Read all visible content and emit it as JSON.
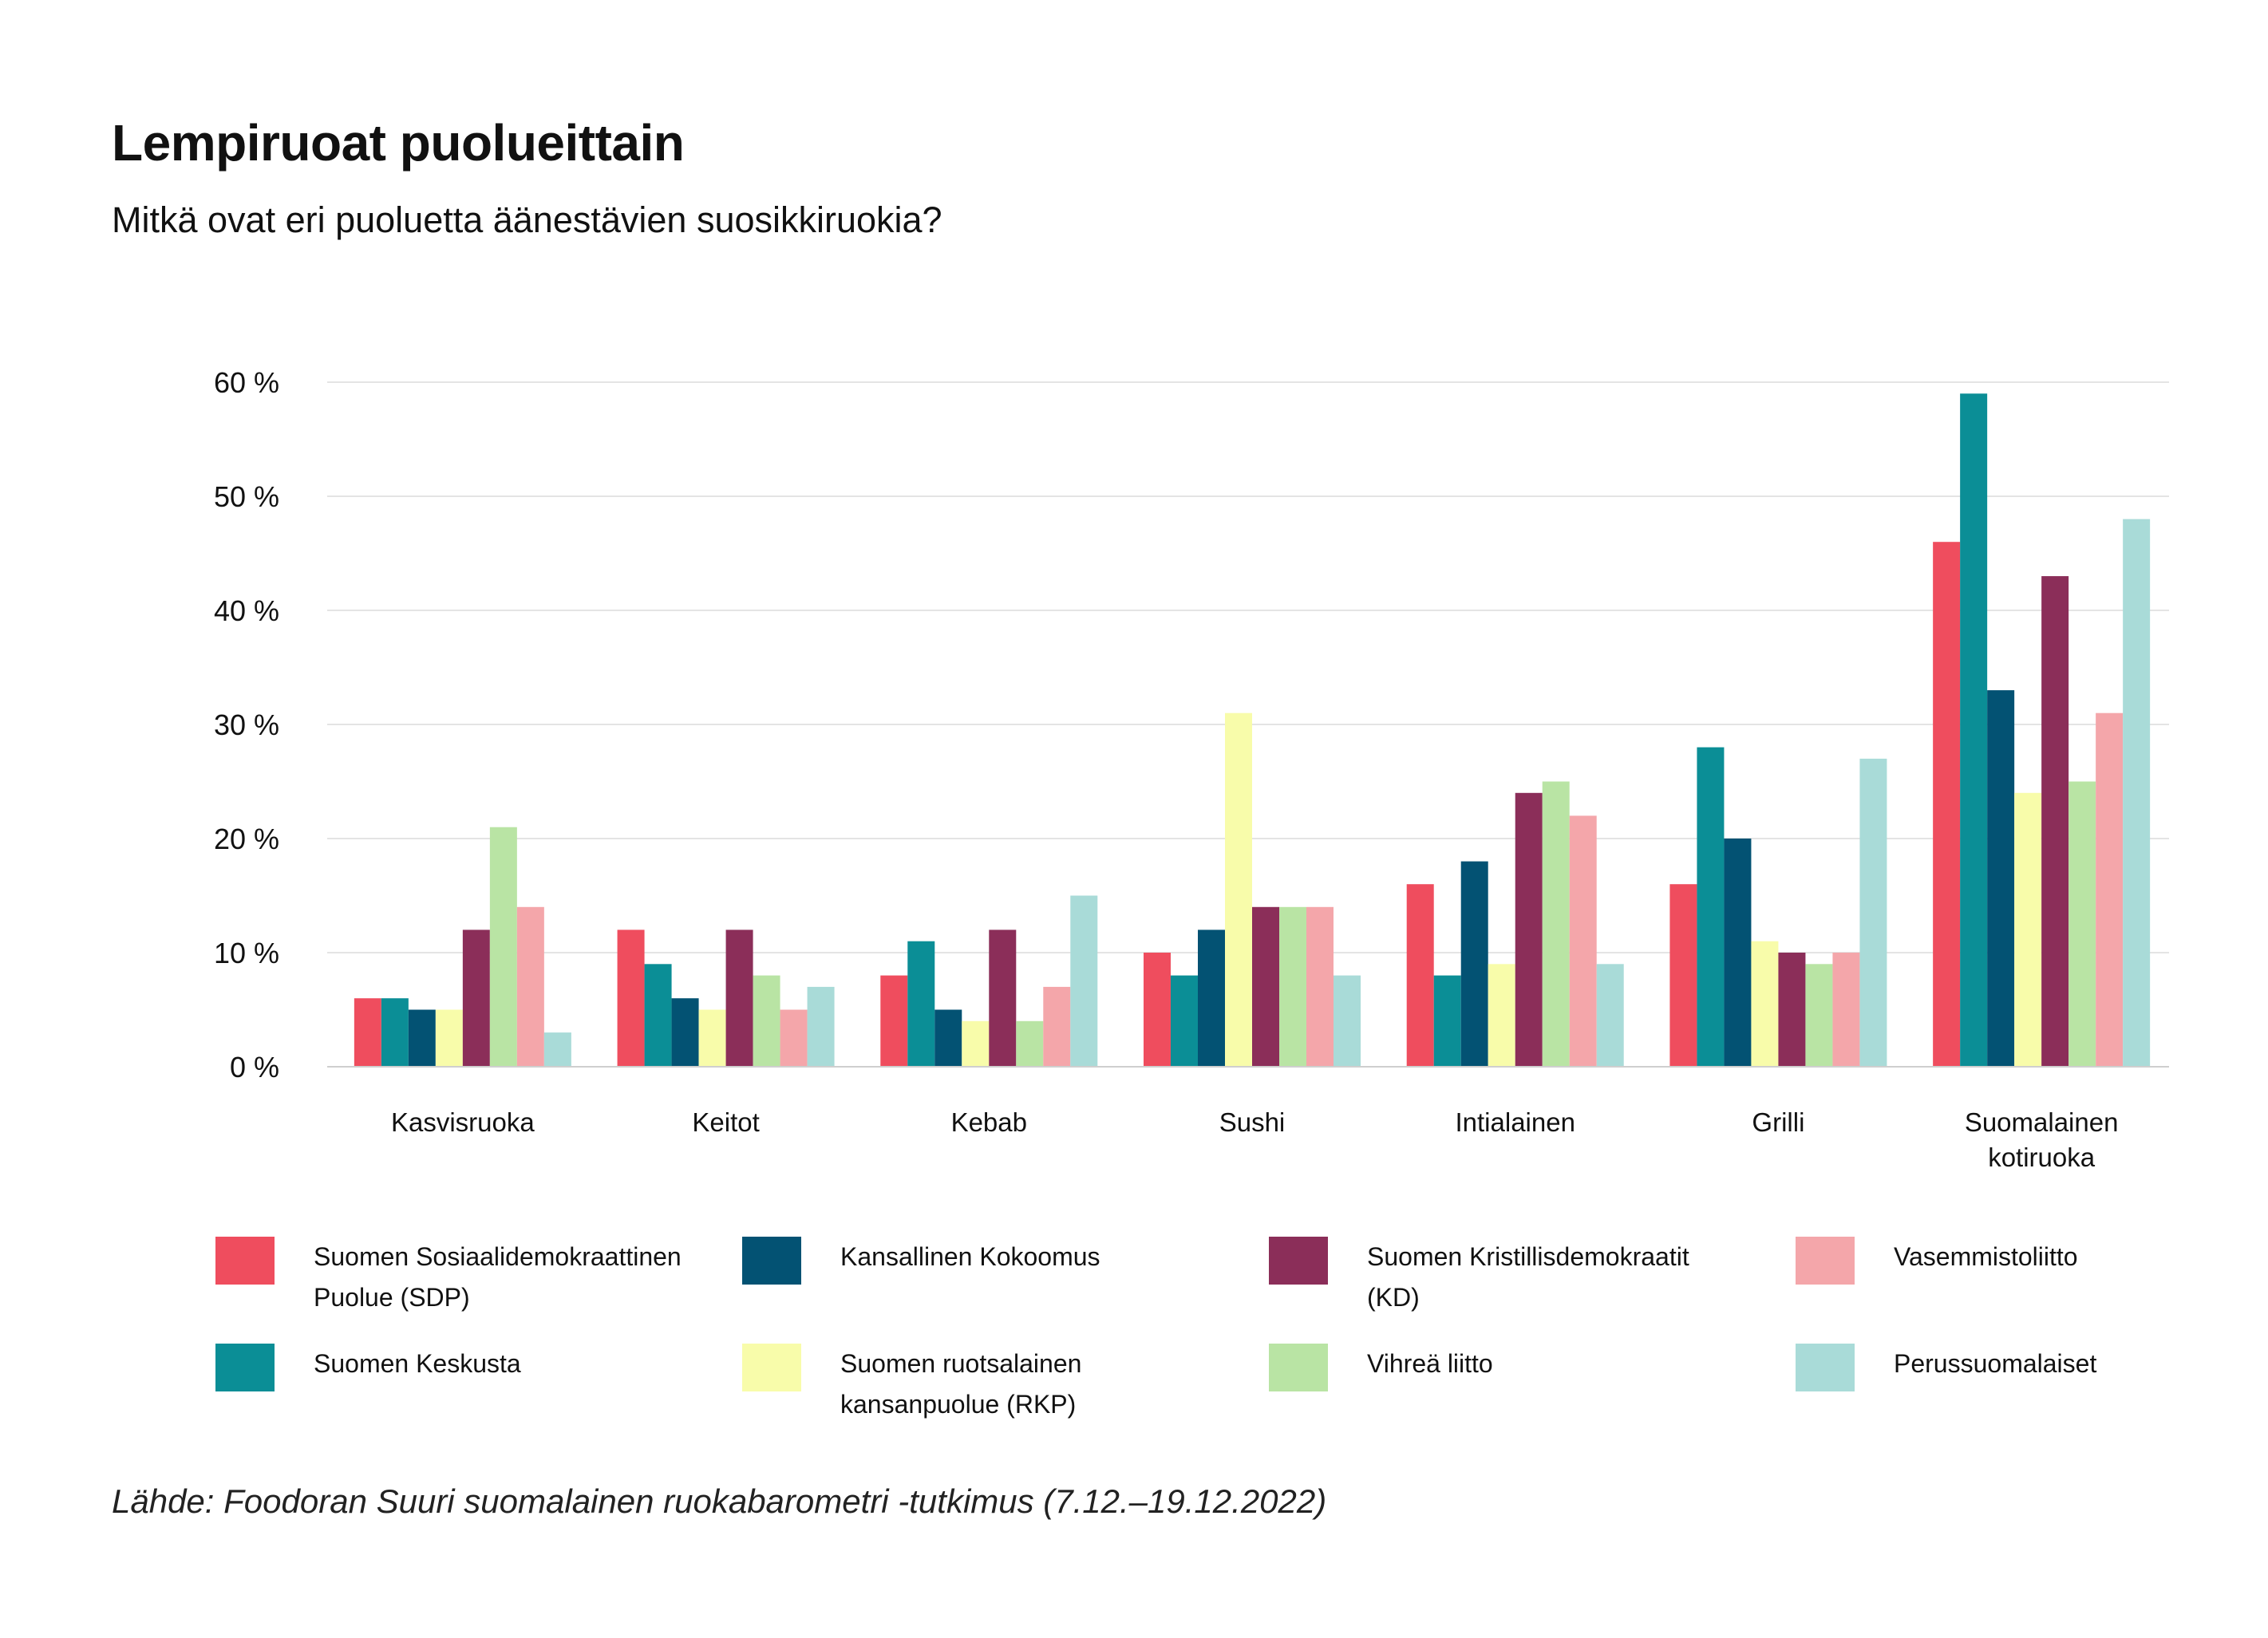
{
  "title": "Lempiruoat puolueittain",
  "subtitle": "Mitkä ovat eri puoluetta äänestävien suosikkiruokia?",
  "source": "Lähde: Foodoran Suuri suomalainen ruokabarometri -tutkimus (7.12.–19.12.2022)",
  "chart_data": {
    "type": "bar",
    "title": "Lempiruoat puolueittain",
    "subtitle": "Mitkä ovat eri puoluetta äänestävien suosikkiruokia?",
    "xlabel": "",
    "ylabel": "",
    "ylim": [
      0,
      60
    ],
    "yticks": [
      0,
      10,
      20,
      30,
      40,
      50,
      60
    ],
    "ytick_labels": [
      "0 %",
      "10 %",
      "20 %",
      "30 %",
      "40 %",
      "50 %",
      "60 %"
    ],
    "grid": true,
    "legend_placement": "bottom",
    "categories": [
      [
        "Kasvisruoka"
      ],
      [
        "Keitot"
      ],
      [
        "Kebab"
      ],
      [
        "Sushi"
      ],
      [
        "Intialainen"
      ],
      [
        "Grilli"
      ],
      [
        "Suomalainen",
        "kotiruoka"
      ]
    ],
    "series": [
      {
        "name": "Suomen Sosiaalidemokraattinen Puolue (SDP)",
        "label_lines": [
          "Suomen Sosiaalidemokraattinen",
          "Puolue (SDP)"
        ],
        "color": "#ef4d5e",
        "values": [
          6,
          12,
          8,
          10,
          16,
          16,
          46
        ]
      },
      {
        "name": "Suomen Keskusta",
        "label_lines": [
          "Suomen Keskusta"
        ],
        "color": "#0b8e96",
        "values": [
          6,
          9,
          11,
          8,
          8,
          28,
          59
        ]
      },
      {
        "name": "Kansallinen Kokoomus",
        "label_lines": [
          "Kansallinen Kokoomus"
        ],
        "color": "#035273",
        "values": [
          5,
          6,
          5,
          12,
          18,
          20,
          33
        ]
      },
      {
        "name": "Suomen ruotsalainen kansanpuolue (RKP)",
        "label_lines": [
          "Suomen ruotsalainen",
          "kansanpuolue (RKP)"
        ],
        "color": "#f8fcaa",
        "values": [
          5,
          5,
          4,
          31,
          9,
          11,
          24
        ]
      },
      {
        "name": "Suomen Kristillisdemokraatit (KD)",
        "label_lines": [
          "Suomen Kristillisdemokraatit",
          "(KD)"
        ],
        "color": "#8b2e59",
        "values": [
          12,
          12,
          12,
          14,
          24,
          10,
          43
        ]
      },
      {
        "name": "Vihreä liitto",
        "label_lines": [
          "Vihreä liitto"
        ],
        "color": "#b9e4a4",
        "values": [
          21,
          8,
          4,
          14,
          25,
          9,
          25
        ]
      },
      {
        "name": "Vasemmistoliitto",
        "label_lines": [
          "Vasemmistoliitto"
        ],
        "color": "#f4a6aa",
        "values": [
          14,
          5,
          7,
          14,
          22,
          10,
          31
        ]
      },
      {
        "name": "Perussuomalaiset",
        "label_lines": [
          "Perussuomalaiset"
        ],
        "color": "#a9dbd8",
        "values": [
          3,
          7,
          15,
          8,
          9,
          27,
          48
        ]
      }
    ]
  }
}
